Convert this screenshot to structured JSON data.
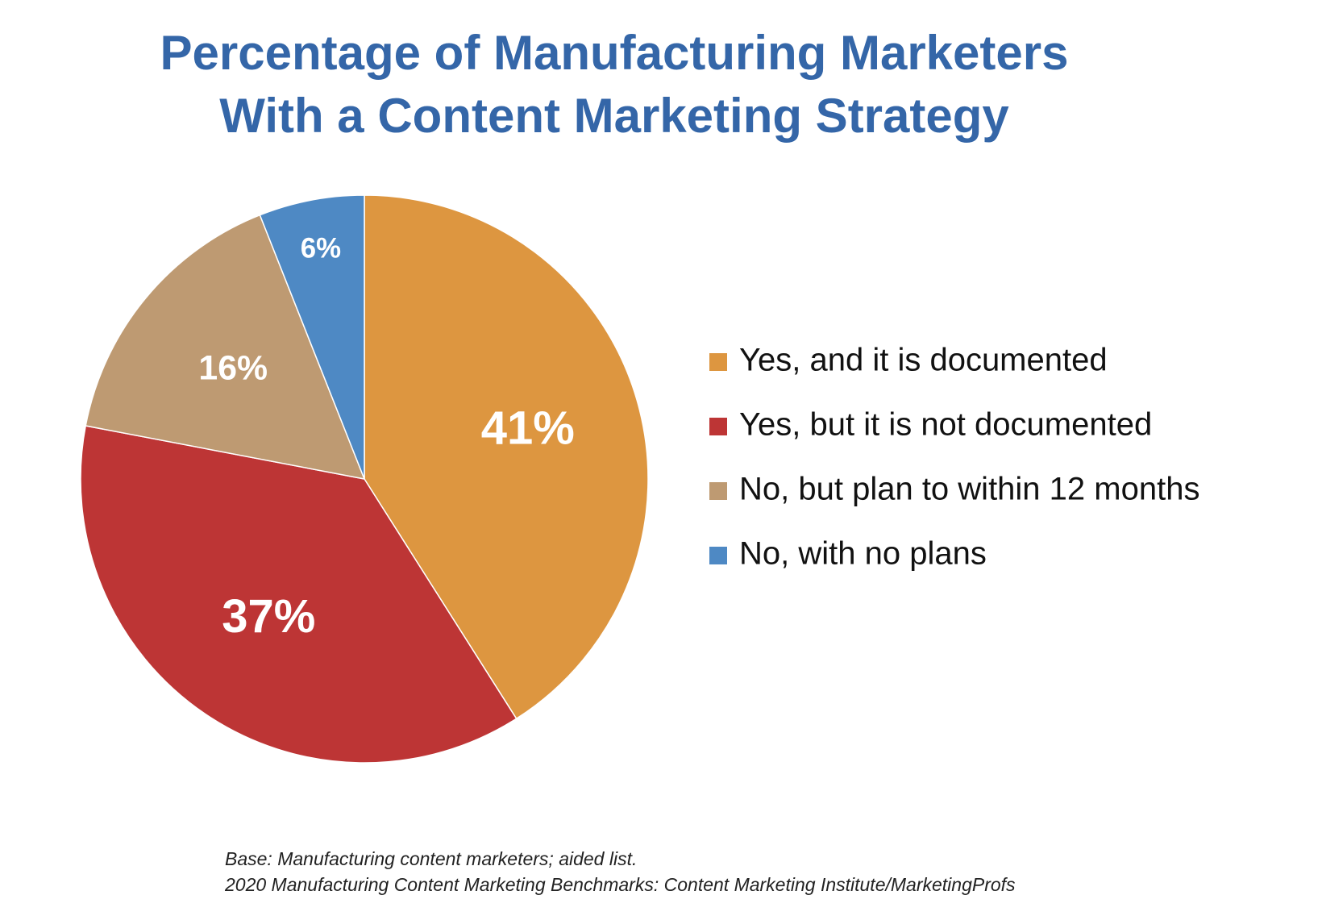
{
  "chart_data": {
    "type": "pie",
    "title": [
      "Percentage of Manufacturing Marketers",
      "With a Content Marketing Strategy"
    ],
    "categories": [
      "Yes, and it is documented",
      "Yes, but it is not documented",
      "No, but plan to within 12 months",
      "No, with no plans"
    ],
    "values": [
      41,
      37,
      16,
      6
    ],
    "value_labels": [
      "41%",
      "37%",
      "16%",
      "6%"
    ],
    "colors": [
      "#dd9640",
      "#bd3535",
      "#be9a72",
      "#4e89c4"
    ],
    "notes": [
      "Base: Manufacturing content marketers; aided list.",
      "2020 Manufacturing Content Marketing Benchmarks: Content Marketing Institute/MarketingProfs"
    ]
  }
}
